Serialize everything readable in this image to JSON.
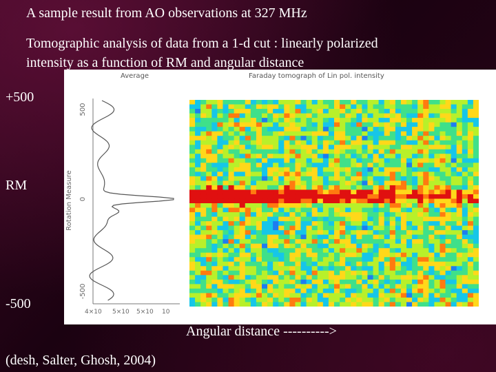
{
  "slide": {
    "title": "A sample result from AO observations at 327 MHz",
    "subtitle_line1": "Tomographic analysis of  data from a 1-d cut : linearly polarized",
    "subtitle_line2": "intensity as a function of   RM   and   angular distance",
    "rm_top": "+500",
    "rm_mid": "RM",
    "rm_bottom": "-500",
    "x_axis_label": "Angular distance ---------->",
    "citation": "(desh, Salter, Ghosh, 2004)"
  },
  "figure": {
    "average_panel_title": "Average",
    "tomograph_panel_title": "Faraday tomograph of Lin pol. intensity",
    "average_ylabel": "Rotation Measure",
    "average_yticks": [
      "500",
      "0",
      "-500"
    ],
    "average_xticks": [
      "4×10",
      "5×10",
      "5×10",
      "10"
    ],
    "colormap": [
      "#1b1fd1",
      "#1e7df0",
      "#16c6e8",
      "#3fe08a",
      "#b8f02a",
      "#ffd81a",
      "#ff7a10",
      "#e01010"
    ]
  }
}
